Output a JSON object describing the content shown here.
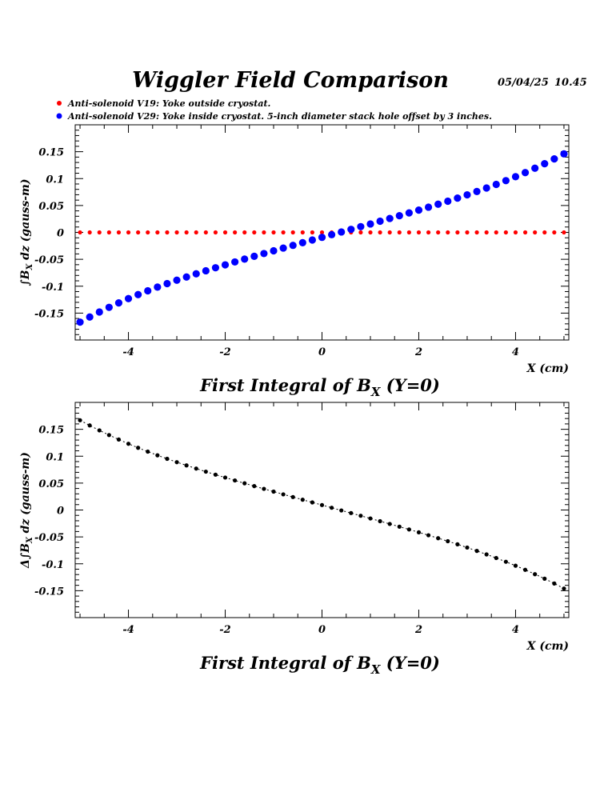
{
  "header": {
    "title": "Wiggler Field Comparison",
    "date": "05/04/25",
    "time": "10.45"
  },
  "legend": [
    {
      "label": "Anti-solenoid V19: Yoke outside cryostat.",
      "color": "#ff0000"
    },
    {
      "label": "Anti-solenoid V29: Yoke inside cryostat. 5-inch diameter stack hole offset by 3 inches.",
      "color": "#0000ff"
    }
  ],
  "chart_data": [
    {
      "type": "scatter",
      "xlim": [
        -5.1,
        5.1
      ],
      "ylim": [
        -0.2,
        0.2
      ],
      "x_ticks": [
        -4,
        -2,
        0,
        2,
        4
      ],
      "y_ticks": [
        0.15,
        0.1,
        0.05,
        0,
        -0.05,
        -0.1,
        -0.15
      ],
      "x_tick_labels": [
        "-4",
        "-2",
        "0",
        "2",
        "4"
      ],
      "y_tick_labels": [
        "0.15",
        "0.1",
        "0.05",
        "0",
        "-0.05",
        "-0.1",
        "-0.15"
      ],
      "ylabel_parts": {
        "integral": "∫",
        "b": "B",
        "sub": "X",
        "tail": " dz  (gauss-m)"
      },
      "xlabel": "X (cm)",
      "caption": {
        "main": "First Integral of B",
        "sub": "X",
        "tail": " (Y=0)"
      },
      "grid": false,
      "series": [
        {
          "name": "Anti-solenoid V19: Yoke outside cryostat.",
          "color": "#ff0000",
          "x": [
            -5.0,
            -4.8,
            -4.6,
            -4.4,
            -4.2,
            -4.0,
            -3.8,
            -3.6,
            -3.4,
            -3.2,
            -3.0,
            -2.8,
            -2.6,
            -2.4,
            -2.2,
            -2.0,
            -1.8,
            -1.6,
            -1.4,
            -1.2,
            -1.0,
            -0.8,
            -0.6,
            -0.4,
            -0.2,
            0.0,
            0.2,
            0.4,
            0.6,
            0.8,
            1.0,
            1.2,
            1.4,
            1.6,
            1.8,
            2.0,
            2.2,
            2.4,
            2.6,
            2.8,
            3.0,
            3.2,
            3.4,
            3.6,
            3.8,
            4.0,
            4.2,
            4.4,
            4.6,
            4.8,
            5.0
          ],
          "y": [
            0,
            0,
            0,
            0,
            0,
            0,
            0,
            0,
            0,
            0,
            0,
            0,
            0,
            0,
            0,
            0,
            0,
            0,
            0,
            0,
            0,
            0,
            0,
            0,
            0,
            0,
            0,
            0,
            0,
            0,
            0,
            0,
            0,
            0,
            0,
            0,
            0,
            0,
            0,
            0,
            0,
            0,
            0,
            0,
            0,
            0,
            0,
            0,
            0,
            0,
            0
          ]
        },
        {
          "name": "Anti-solenoid V29: Yoke inside cryostat. 5-inch diameter stack hole offset by 3 inches.",
          "color": "#0000ff",
          "x": [
            -5.0,
            -4.8,
            -4.6,
            -4.4,
            -4.2,
            -4.0,
            -3.8,
            -3.6,
            -3.4,
            -3.2,
            -3.0,
            -2.8,
            -2.6,
            -2.4,
            -2.2,
            -2.0,
            -1.8,
            -1.6,
            -1.4,
            -1.2,
            -1.0,
            -0.8,
            -0.6,
            -0.4,
            -0.2,
            0.0,
            0.2,
            0.4,
            0.6,
            0.8,
            1.0,
            1.2,
            1.4,
            1.6,
            1.8,
            2.0,
            2.2,
            2.4,
            2.6,
            2.8,
            3.0,
            3.2,
            3.4,
            3.6,
            3.8,
            4.0,
            4.2,
            4.4,
            4.6,
            4.8,
            5.0
          ],
          "y": [
            -0.1668,
            -0.1572,
            -0.148,
            -0.1393,
            -0.131,
            -0.1231,
            -0.1156,
            -0.1085,
            -0.1017,
            -0.0952,
            -0.0889,
            -0.0829,
            -0.077,
            -0.0713,
            -0.0657,
            -0.0603,
            -0.0549,
            -0.0496,
            -0.0444,
            -0.0393,
            -0.0342,
            -0.0291,
            -0.0241,
            -0.0191,
            -0.0141,
            -0.0092,
            -0.0042,
            0.0008,
            0.0057,
            0.0107,
            0.0157,
            0.0208,
            0.0259,
            0.031,
            0.0362,
            0.0415,
            0.0469,
            0.0524,
            0.058,
            0.0638,
            0.0698,
            0.076,
            0.0825,
            0.0892,
            0.0962,
            0.1035,
            0.1112,
            0.1193,
            0.1277,
            0.1366,
            0.146
          ]
        }
      ]
    },
    {
      "type": "scatter",
      "xlim": [
        -5.1,
        5.1
      ],
      "ylim": [
        -0.2,
        0.2
      ],
      "x_ticks": [
        -4,
        -2,
        0,
        2,
        4
      ],
      "y_ticks": [
        0.15,
        0.1,
        0.05,
        0,
        -0.05,
        -0.1,
        -0.15
      ],
      "x_tick_labels": [
        "-4",
        "-2",
        "0",
        "2",
        "4"
      ],
      "y_tick_labels": [
        "0.15",
        "0.1",
        "0.05",
        "0",
        "-0.05",
        "-0.1",
        "-0.15"
      ],
      "ylabel_parts": {
        "integral": "Δ∫",
        "b": "B",
        "sub": "X",
        "tail": " dz  (gauss-m)"
      },
      "xlabel": "X (cm)",
      "caption": {
        "main": "First Integral of B",
        "sub": "X",
        "tail": " (Y=0)"
      },
      "grid": false,
      "series": [
        {
          "color": "#000000",
          "connected": true,
          "x": [
            -5.0,
            -4.8,
            -4.6,
            -4.4,
            -4.2,
            -4.0,
            -3.8,
            -3.6,
            -3.4,
            -3.2,
            -3.0,
            -2.8,
            -2.6,
            -2.4,
            -2.2,
            -2.0,
            -1.8,
            -1.6,
            -1.4,
            -1.2,
            -1.0,
            -0.8,
            -0.6,
            -0.4,
            -0.2,
            0.0,
            0.2,
            0.4,
            0.6,
            0.8,
            1.0,
            1.2,
            1.4,
            1.6,
            1.8,
            2.0,
            2.2,
            2.4,
            2.6,
            2.8,
            3.0,
            3.2,
            3.4,
            3.6,
            3.8,
            4.0,
            4.2,
            4.4,
            4.6,
            4.8,
            5.0
          ],
          "y": [
            0.1668,
            0.1572,
            0.148,
            0.1393,
            0.131,
            0.1231,
            0.1156,
            0.1085,
            0.1017,
            0.0952,
            0.0889,
            0.0829,
            0.077,
            0.0713,
            0.0657,
            0.0603,
            0.0549,
            0.0496,
            0.0444,
            0.0393,
            0.0342,
            0.0291,
            0.0241,
            0.0191,
            0.0141,
            0.0092,
            0.0042,
            -0.0008,
            -0.0057,
            -0.0107,
            -0.0157,
            -0.0208,
            -0.0259,
            -0.031,
            -0.0362,
            -0.0415,
            -0.0469,
            -0.0524,
            -0.058,
            -0.0638,
            -0.0698,
            -0.076,
            -0.0825,
            -0.0892,
            -0.0962,
            -0.1035,
            -0.1112,
            -0.1193,
            -0.1277,
            -0.1366,
            -0.146
          ]
        }
      ]
    }
  ]
}
